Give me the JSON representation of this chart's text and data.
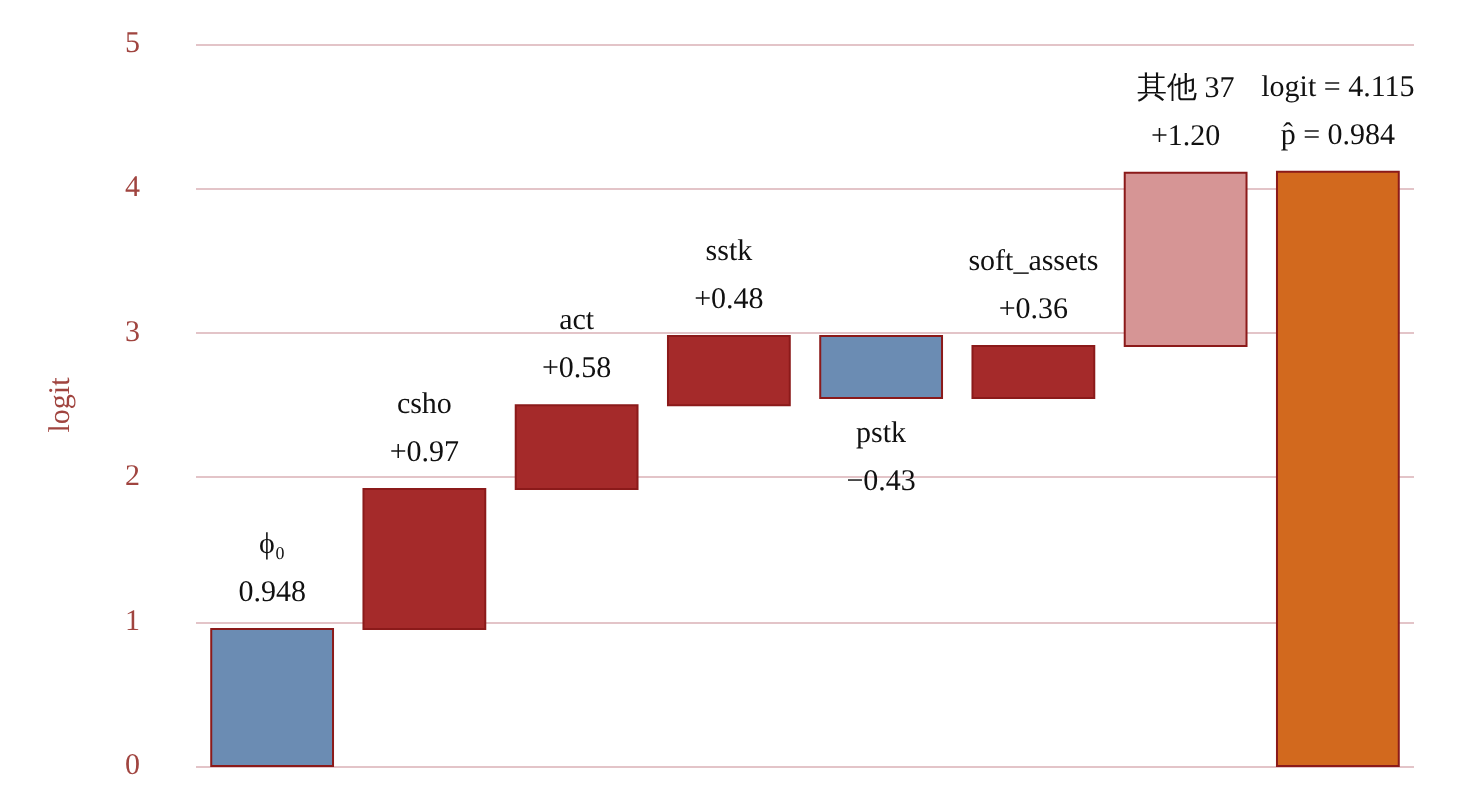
{
  "chart_data": {
    "type": "bar",
    "ylabel": "logit",
    "categories": [
      "ϕ₀",
      "csho",
      "act",
      "sstk",
      "pstk",
      "soft_assets",
      "其他 37",
      "logit = 4.115"
    ],
    "values": [
      0.948,
      0.97,
      0.58,
      0.48,
      -0.43,
      0.36,
      1.2,
      4.115
    ],
    "base": [
      0,
      0.948,
      1.918,
      2.498,
      2.978,
      2.548,
      2.908,
      0
    ],
    "colors": [
      "#6b8cb3",
      "#a52a2a",
      "#a52a2a",
      "#a52a2a",
      "#6b8cb3",
      "#a52a2a",
      "#d69595",
      "#d2691e"
    ],
    "value_labels": [
      "0.948",
      "+0.97",
      "+0.58",
      "+0.48",
      "−0.43",
      "+0.36",
      "+1.20",
      null
    ],
    "annotations": [
      {
        "text": "p̂ = 0.984",
        "x": "logit = 4.115",
        "y": 4.115
      }
    ],
    "ylim": [
      0,
      5
    ],
    "yticks": [
      0,
      1,
      2,
      3,
      4,
      5
    ],
    "grid": "y",
    "tick_labels": "y"
  }
}
